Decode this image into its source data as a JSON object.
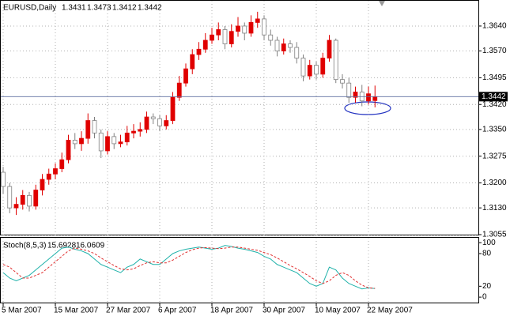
{
  "chart_data": [
    {
      "type": "candlestick",
      "title": "EURUSD,Daily",
      "categories": [
        "5 Mar 2007",
        null,
        null,
        null,
        null,
        null,
        null,
        null,
        "15 Mar 2007",
        null,
        null,
        null,
        null,
        null,
        null,
        null,
        "27 Mar 2007",
        null,
        null,
        null,
        null,
        null,
        null,
        null,
        "6 Apr 2007",
        null,
        null,
        null,
        null,
        null,
        null,
        null,
        "18 Apr 2007",
        null,
        null,
        null,
        null,
        null,
        null,
        null,
        "30 Apr 2007",
        null,
        null,
        null,
        null,
        null,
        null,
        null,
        "10 May 2007",
        null,
        null,
        null,
        null,
        null,
        null,
        null,
        "22 May 2007",
        null
      ],
      "open": [
        1.323,
        1.319,
        1.313,
        1.314,
        1.3165,
        1.3135,
        1.318,
        1.321,
        1.3225,
        1.324,
        1.3265,
        1.332,
        1.331,
        1.3325,
        1.3375,
        1.334,
        1.329,
        1.333,
        1.331,
        1.3315,
        1.334,
        1.3345,
        1.335,
        1.3385,
        1.338,
        1.336,
        1.3375,
        1.344,
        1.348,
        1.352,
        1.356,
        1.3575,
        1.36,
        1.3615,
        1.363,
        1.359,
        1.3625,
        1.364,
        1.362,
        1.365,
        1.366,
        1.3615,
        1.36,
        1.357,
        1.359,
        1.358,
        1.355,
        1.35,
        1.353,
        1.3505,
        1.355,
        1.36,
        1.349,
        1.348,
        1.344,
        1.3455,
        1.343,
        1.3431
      ],
      "high": [
        1.3245,
        1.32,
        1.316,
        1.318,
        1.3175,
        1.3195,
        1.3225,
        1.324,
        1.3255,
        1.3285,
        1.3335,
        1.334,
        1.3345,
        1.3395,
        1.3385,
        1.335,
        1.3345,
        1.334,
        1.3335,
        1.336,
        1.3365,
        1.337,
        1.34,
        1.3395,
        1.339,
        1.339,
        1.3455,
        1.35,
        1.3535,
        1.3575,
        1.3595,
        1.362,
        1.3635,
        1.365,
        1.364,
        1.3645,
        1.3665,
        1.365,
        1.367,
        1.368,
        1.367,
        1.363,
        1.361,
        1.3605,
        1.36,
        1.3595,
        1.356,
        1.3545,
        1.354,
        1.3565,
        1.3615,
        1.3605,
        1.3505,
        1.3495,
        1.347,
        1.3475,
        1.347,
        1.3473
      ],
      "low": [
        1.317,
        1.3115,
        1.311,
        1.3125,
        1.312,
        1.3125,
        1.3165,
        1.3195,
        1.321,
        1.323,
        1.3255,
        1.3295,
        1.329,
        1.331,
        1.3325,
        1.327,
        1.328,
        1.3295,
        1.33,
        1.3305,
        1.3325,
        1.333,
        1.334,
        1.3365,
        1.3345,
        1.335,
        1.3365,
        1.343,
        1.347,
        1.3505,
        1.3545,
        1.3565,
        1.359,
        1.36,
        1.3575,
        1.358,
        1.361,
        1.36,
        1.361,
        1.3635,
        1.36,
        1.3585,
        1.3555,
        1.356,
        1.3565,
        1.3535,
        1.3485,
        1.349,
        1.349,
        1.3495,
        1.354,
        1.348,
        1.3465,
        1.3425,
        1.3425,
        1.3415,
        1.342,
        1.3412
      ],
      "close": [
        1.319,
        1.313,
        1.314,
        1.3165,
        1.3135,
        1.318,
        1.321,
        1.3225,
        1.324,
        1.3265,
        1.332,
        1.331,
        1.3325,
        1.3375,
        1.334,
        1.329,
        1.333,
        1.331,
        1.3315,
        1.334,
        1.3345,
        1.335,
        1.3385,
        1.338,
        1.336,
        1.3375,
        1.344,
        1.348,
        1.352,
        1.356,
        1.3575,
        1.36,
        1.3615,
        1.363,
        1.359,
        1.3625,
        1.364,
        1.362,
        1.365,
        1.366,
        1.3615,
        1.36,
        1.357,
        1.359,
        1.358,
        1.355,
        1.35,
        1.353,
        1.3505,
        1.355,
        1.36,
        1.349,
        1.348,
        1.344,
        1.3455,
        1.343,
        1.345,
        1.3442
      ],
      "up_color": "#e00000",
      "down_color": "#ffffff",
      "ylim": [
        1.3055,
        1.3713
      ],
      "yticks": [
        1.3055,
        {
          "value": 1.313,
          "label": "1.3130"
        },
        {
          "value": 1.32,
          "label": "1.3200"
        },
        1.3275,
        {
          "value": 1.335,
          "label": "1.3350"
        },
        {
          "value": 1.342,
          "label": "1.3420"
        },
        1.3495,
        {
          "value": 1.357,
          "label": "1.3570"
        },
        {
          "value": 1.364,
          "label": "1.3640"
        }
      ],
      "grid": true
    },
    {
      "type": "line",
      "title": "Stoch(8,5,3)",
      "series": [
        {
          "color": "#20b2aa",
          "style": "solid",
          "values": [
            45,
            35,
            30,
            35,
            40,
            50,
            60,
            70,
            80,
            90,
            92,
            88,
            85,
            80,
            70,
            60,
            55,
            50,
            45,
            55,
            60,
            70,
            65,
            60,
            60,
            70,
            80,
            85,
            88,
            90,
            92,
            90,
            88,
            90,
            95,
            93,
            90,
            88,
            85,
            82,
            75,
            70,
            60,
            55,
            50,
            45,
            35,
            25,
            20,
            25,
            55,
            50,
            35,
            25,
            20,
            15,
            17,
            15.6928
          ]
        },
        {
          "color": "#e03030",
          "style": "dashed",
          "values": [
            60,
            55,
            45,
            35,
            35,
            40,
            45,
            55,
            65,
            75,
            85,
            90,
            88,
            85,
            80,
            72,
            65,
            58,
            52,
            50,
            52,
            58,
            63,
            65,
            63,
            63,
            68,
            75,
            82,
            87,
            90,
            91,
            90,
            89,
            90,
            92,
            92,
            90,
            88,
            86,
            82,
            78,
            72,
            65,
            58,
            52,
            45,
            38,
            30,
            25,
            30,
            40,
            45,
            40,
            30,
            22,
            17,
            16.0609
          ]
        }
      ],
      "ylim": [
        -10,
        109
      ],
      "yticks": [
        0,
        20,
        80,
        100
      ]
    }
  ]
}
